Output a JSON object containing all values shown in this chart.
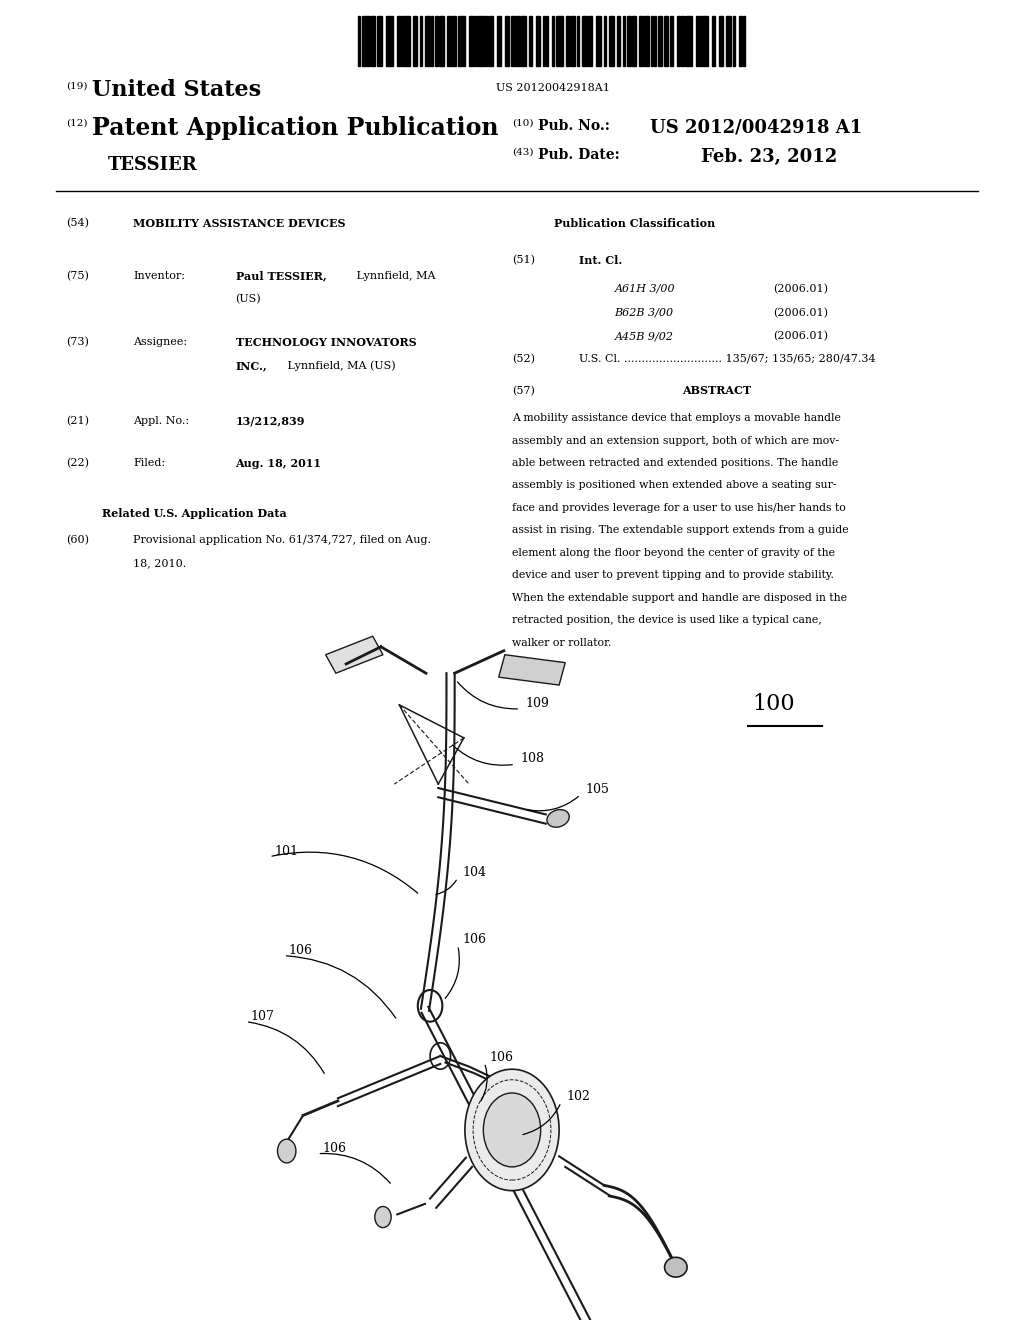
{
  "background_color": "#ffffff",
  "barcode_text": "US 20120042918A1",
  "patent_number_label": "(19)",
  "patent_number_text": "United States",
  "pub_label": "(12)",
  "pub_text": "Patent Application Publication",
  "pub_number_label": "(10)",
  "pub_number_text": "Pub. No.:",
  "pub_number_value": "US 2012/0042918 A1",
  "inventor_surname": "TESSIER",
  "pub_date_label": "(43)",
  "pub_date_text": "Pub. Date:",
  "pub_date_value": "Feb. 23, 2012",
  "title_label": "(54)",
  "title_text": "MOBILITY ASSISTANCE DEVICES",
  "pub_class_title": "Publication Classification",
  "int_cl_label": "(51)",
  "int_cl_text": "Int. Cl.",
  "int_cl_entries": [
    [
      "A61H 3/00",
      "(2006.01)"
    ],
    [
      "B62B 3/00",
      "(2006.01)"
    ],
    [
      "A45B 9/02",
      "(2006.01)"
    ]
  ],
  "us_cl_label": "(52)",
  "us_cl_text": "U.S. Cl. ............................ 135/67; 135/65; 280/47.34",
  "abstract_label": "(57)",
  "abstract_title": "ABSTRACT",
  "abstract_lines": [
    "A mobility assistance device that employs a movable handle",
    "assembly and an extension support, both of which are mov-",
    "able between retracted and extended positions. The handle",
    "assembly is positioned when extended above a seating sur-",
    "face and provides leverage for a user to use his/her hands to",
    "assist in rising. The extendable support extends from a guide",
    "element along the floor beyond the center of gravity of the",
    "device and user to prevent tipping and to provide stability.",
    "When the extendable support and handle are disposed in the",
    "retracted position, the device is used like a typical cane,",
    "walker or rollator."
  ],
  "inventor_label2": "(75)",
  "inventor_title": "Inventor:",
  "assignee_label": "(73)",
  "assignee_title": "Assignee:",
  "appl_label": "(21)",
  "appl_title": "Appl. No.:",
  "appl_number": "13/212,839",
  "filed_label": "(22)",
  "filed_title": "Filed:",
  "filed_date": "Aug. 18, 2011",
  "related_title": "Related U.S. Application Data",
  "related_label": "(60)",
  "related_line1": "Provisional application No. 61/374,727, filed on Aug.",
  "related_line2": "18, 2010.",
  "fig_label": "100",
  "draw_color": "#1a1a1a"
}
